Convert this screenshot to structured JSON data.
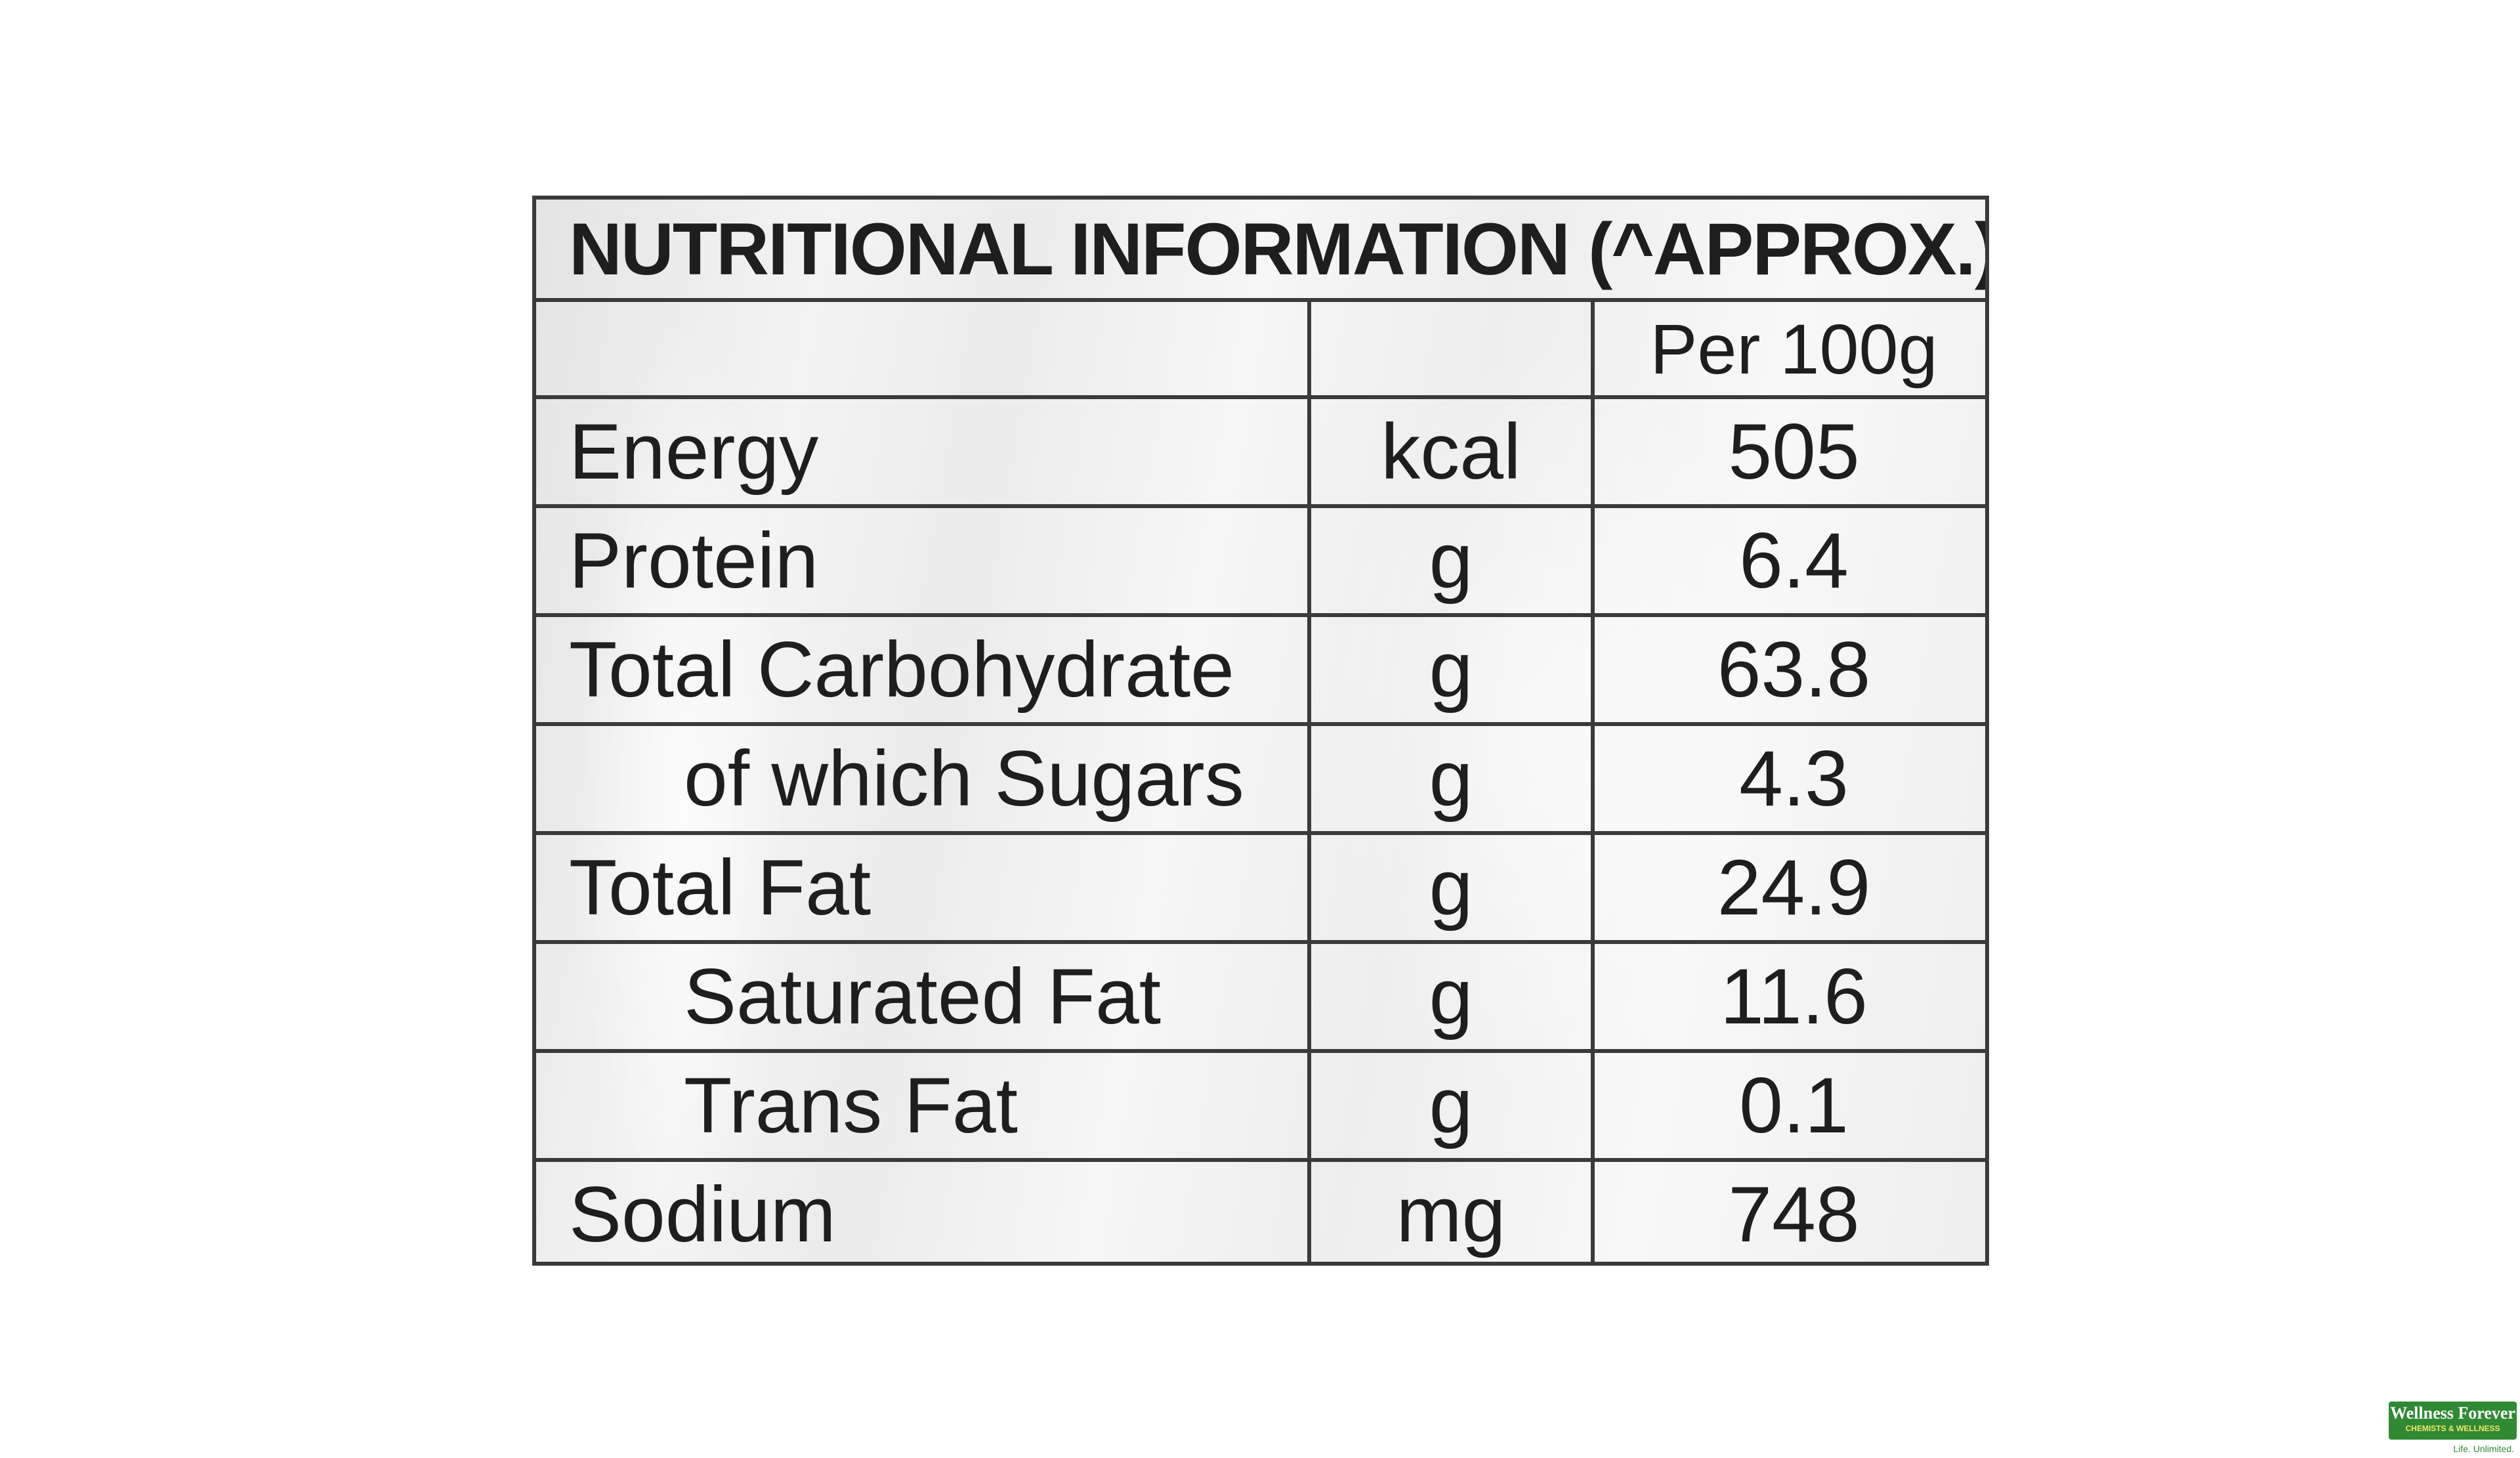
{
  "table": {
    "title": "NUTRITIONAL INFORMATION (^APPROX.):",
    "header": {
      "name": "",
      "unit": "",
      "value": "Per 100g"
    },
    "rows": [
      {
        "name": "Energy",
        "unit": "kcal",
        "value": "505",
        "indented": false
      },
      {
        "name": "Protein",
        "unit": "g",
        "value": "6.4",
        "indented": false
      },
      {
        "name": "Total Carbohydrate",
        "unit": "g",
        "value": "63.8",
        "indented": false
      },
      {
        "name": "of which Sugars",
        "unit": "g",
        "value": "4.3",
        "indented": true
      },
      {
        "name": "Total Fat",
        "unit": "g",
        "value": "24.9",
        "indented": false
      },
      {
        "name": "Saturated Fat",
        "unit": "g",
        "value": "11.6",
        "indented": true
      },
      {
        "name": "Trans Fat",
        "unit": "g",
        "value": "0.1",
        "indented": true
      },
      {
        "name": "Sodium",
        "unit": "mg",
        "value": "748",
        "indented": false
      }
    ]
  },
  "brand": {
    "name": "Wellness Forever",
    "subtitle": "CHEMISTS & WELLNESS",
    "tagline": "Life. Unlimited.",
    "color": "#2f8a33"
  }
}
